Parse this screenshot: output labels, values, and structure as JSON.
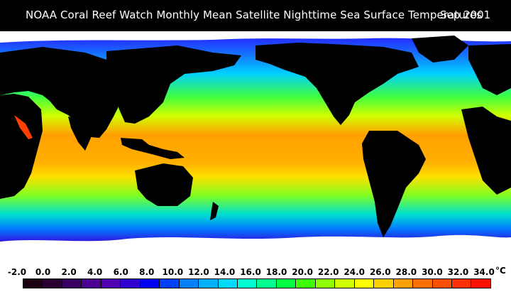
{
  "header": {
    "title": "NOAA Coral Reef Watch Monthly Mean Satellite Nighttime Sea Surface Temperatures",
    "date": "Sep 2001"
  },
  "legend": {
    "unit": "°C",
    "ticks": [
      "-2.0",
      "0.0",
      "2.0",
      "4.0",
      "6.0",
      "8.0",
      "10.0",
      "12.0",
      "14.0",
      "16.0",
      "18.0",
      "20.0",
      "22.0",
      "24.0",
      "26.0",
      "28.0",
      "30.0",
      "32.0",
      "34.0"
    ],
    "colors": [
      "#1a0010",
      "#2a0030",
      "#3a0060",
      "#4a0090",
      "#5000b0",
      "#3000d0",
      "#0000f0",
      "#0040ff",
      "#0080ff",
      "#00b0ff",
      "#00d8ff",
      "#00ffd0",
      "#00ff90",
      "#00ff40",
      "#40ff00",
      "#90ff00",
      "#d0ff00",
      "#ffff00",
      "#ffd000",
      "#ffa000",
      "#ff7000",
      "#ff5000",
      "#ff3000",
      "#ff1000"
    ]
  },
  "map_colors": {
    "land": "#000000",
    "ice": "#ffffff"
  }
}
